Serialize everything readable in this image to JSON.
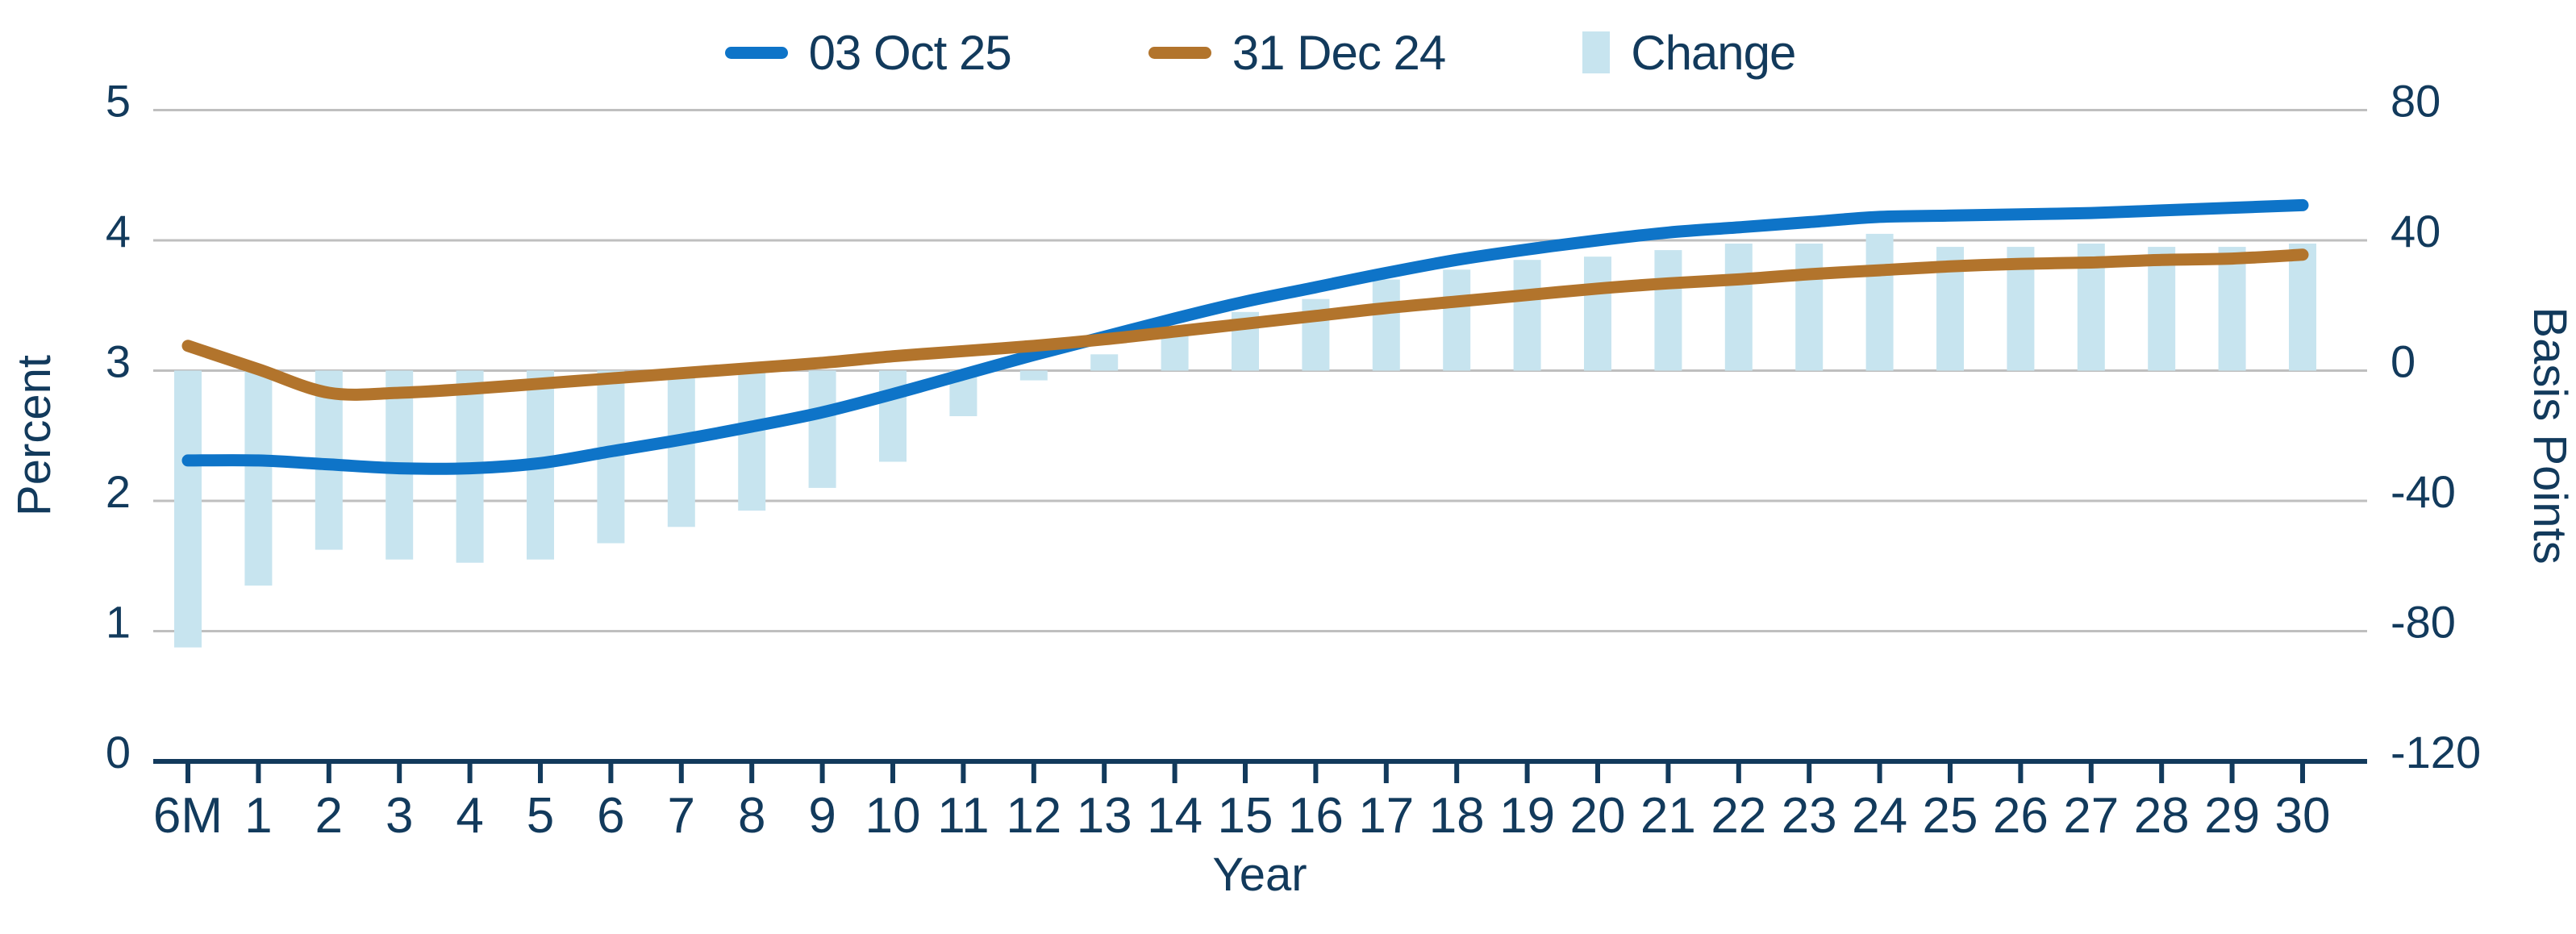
{
  "legend": {
    "position": "top"
  },
  "chart_data": {
    "type": "combo",
    "title": "",
    "x_categories": [
      "6M",
      "1",
      "2",
      "3",
      "4",
      "5",
      "6",
      "7",
      "8",
      "9",
      "10",
      "11",
      "12",
      "13",
      "14",
      "15",
      "16",
      "17",
      "18",
      "19",
      "20",
      "21",
      "22",
      "23",
      "24",
      "25",
      "26",
      "27",
      "28",
      "29",
      "30"
    ],
    "x_axis": {
      "title": "Year"
    },
    "left_axis": {
      "title": "Percent",
      "ticks": [
        "5",
        "4",
        "3",
        "2",
        "1",
        "0"
      ],
      "tick_values": [
        5,
        4,
        3,
        2,
        1,
        0
      ],
      "min": 0,
      "max": 5
    },
    "right_axis": {
      "title": "Basis Points",
      "ticks": [
        "80",
        "40",
        "0",
        "-40",
        "-80",
        "-120"
      ],
      "tick_values": [
        80,
        40,
        0,
        -40,
        -80,
        -120
      ],
      "min": -120,
      "max": 80
    },
    "grid": "horizontal",
    "legend_position": "top-center",
    "series": [
      {
        "name": "03 Oct 25",
        "type": "line",
        "axis": "left",
        "unit": "percent",
        "color": "#0E74C8",
        "values": [
          2.31,
          2.31,
          2.28,
          2.25,
          2.25,
          2.29,
          2.38,
          2.47,
          2.57,
          2.68,
          2.82,
          2.97,
          3.12,
          3.26,
          3.4,
          3.53,
          3.64,
          3.75,
          3.85,
          3.93,
          4.0,
          4.06,
          4.1,
          4.14,
          4.18,
          4.19,
          4.2,
          4.21,
          4.23,
          4.25,
          4.27
        ]
      },
      {
        "name": "31 Dec 24",
        "type": "line",
        "axis": "left",
        "unit": "percent",
        "color": "#B2742C",
        "values": [
          3.19,
          3.01,
          2.83,
          2.83,
          2.86,
          2.9,
          2.94,
          2.98,
          3.02,
          3.06,
          3.11,
          3.15,
          3.19,
          3.24,
          3.3,
          3.36,
          3.42,
          3.48,
          3.53,
          3.58,
          3.63,
          3.67,
          3.7,
          3.74,
          3.77,
          3.8,
          3.82,
          3.83,
          3.85,
          3.86,
          3.89
        ]
      },
      {
        "name": "Change",
        "type": "bar",
        "axis": "right",
        "unit": "basis_points",
        "color": "#C7E4EF",
        "values": [
          -85,
          -66,
          -55,
          -58,
          -59,
          -58,
          -53,
          -48,
          -43,
          -36,
          -28,
          -14,
          -3,
          5,
          12,
          18,
          22,
          28,
          31,
          34,
          35,
          37,
          39,
          39,
          42,
          38,
          38,
          39,
          38,
          38,
          39
        ]
      }
    ],
    "colors": {
      "text": "#123A5C",
      "gridline": "#BFBFBF",
      "axis_line": "#123A5C",
      "background": "#FFFFFF"
    }
  }
}
